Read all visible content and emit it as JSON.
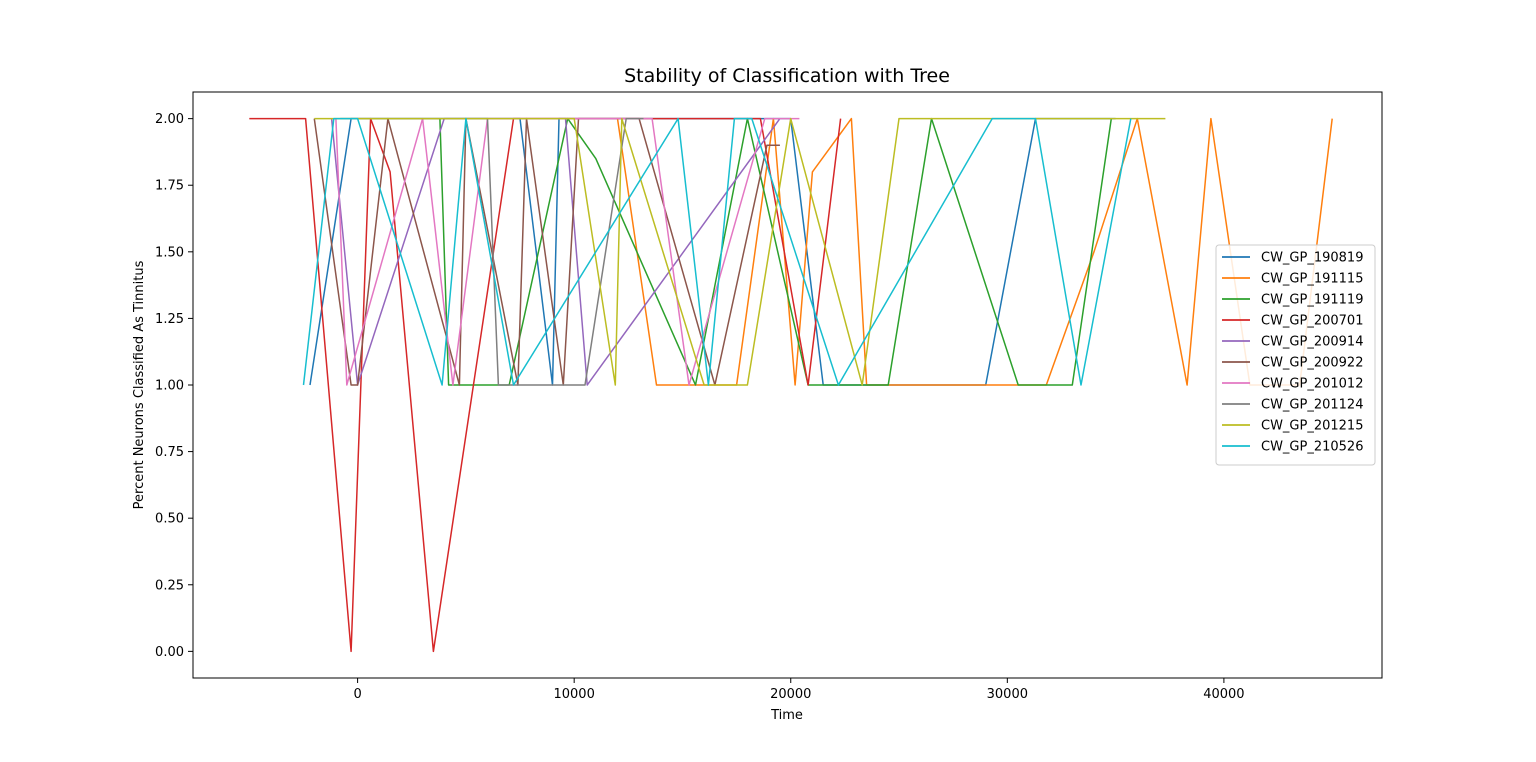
{
  "chart_data": {
    "type": "line",
    "title": "Stability of Classification with Tree",
    "xlabel": "Time",
    "ylabel": "Percent Neurons Classified As Tinnitus",
    "xlim": [
      -7600,
      47300
    ],
    "ylim": [
      -0.1,
      2.1
    ],
    "xticks": [
      0,
      10000,
      20000,
      30000,
      40000
    ],
    "xtick_labels": [
      "0",
      "10000",
      "20000",
      "30000",
      "40000"
    ],
    "yticks": [
      0.0,
      0.25,
      0.5,
      0.75,
      1.0,
      1.25,
      1.5,
      1.75,
      2.0
    ],
    "ytick_labels": [
      "0.00",
      "0.25",
      "0.50",
      "0.75",
      "1.00",
      "1.25",
      "1.50",
      "1.75",
      "2.00"
    ],
    "grid": false,
    "legend": "center-right",
    "colors": [
      "#1f77b4",
      "#ff7f0e",
      "#2ca02c",
      "#d62728",
      "#9467bd",
      "#8c564b",
      "#e377c2",
      "#7f7f7f",
      "#bcbd22",
      "#17becf"
    ],
    "series": [
      {
        "name": "CW_GP_190819",
        "x": [
          -2200,
          -300,
          1000,
          5000,
          7500,
          9000,
          9300,
          11000,
          15000,
          19000,
          20000,
          21500,
          29000,
          31300,
          35000
        ],
        "y": [
          1,
          2,
          2,
          2,
          2,
          1,
          2,
          2,
          2,
          2,
          2,
          1,
          1,
          2,
          2
        ]
      },
      {
        "name": "CW_GP_191115",
        "x": [
          12000,
          13800,
          17500,
          19200,
          20200,
          21000,
          22800,
          23500,
          31800,
          34000,
          36000,
          38300,
          39400,
          41200,
          43500,
          45000
        ],
        "y": [
          2,
          1,
          1,
          2,
          1,
          1.8,
          2,
          1,
          1,
          1.5,
          2,
          1,
          2,
          1,
          1,
          2
        ]
      },
      {
        "name": "CW_GP_191119",
        "x": [
          3800,
          4200,
          7000,
          9700,
          11000,
          15600,
          18000,
          20800,
          24500,
          26500,
          30500,
          33000,
          34800
        ],
        "y": [
          2,
          1,
          1,
          2,
          1.85,
          1,
          2,
          1,
          1,
          2,
          1,
          1,
          2
        ]
      },
      {
        "name": "CW_GP_200701",
        "x": [
          -5000,
          -2400,
          -300,
          600,
          1500,
          3500,
          7200,
          9800,
          18600,
          20800,
          22300
        ],
        "y": [
          2,
          2,
          0,
          2,
          1.8,
          0,
          2,
          2,
          2,
          1,
          2
        ]
      },
      {
        "name": "CW_GP_200914",
        "x": [
          -1200,
          0,
          4000,
          9600,
          10600,
          19500
        ],
        "y": [
          2,
          1,
          2,
          2,
          1,
          2
        ]
      },
      {
        "name": "CW_GP_200922",
        "x": [
          -2000,
          -300,
          0,
          1400,
          4700,
          5000,
          7400,
          7800,
          9500,
          10200,
          13000,
          16500,
          18900,
          19500
        ],
        "y": [
          2,
          1,
          1,
          2,
          1,
          2,
          1,
          2,
          1,
          2,
          2,
          1,
          1.9,
          1.9
        ]
      },
      {
        "name": "CW_GP_201012",
        "x": [
          -1000,
          -500,
          3000,
          4400,
          6000,
          7200,
          13600,
          15300,
          18800,
          20400
        ],
        "y": [
          2,
          1,
          2,
          1,
          2,
          2,
          2,
          1,
          2,
          2
        ]
      },
      {
        "name": "CW_GP_201124",
        "x": [
          -800,
          6000,
          6500,
          10500,
          12400,
          13200
        ],
        "y": [
          2,
          2,
          1,
          1,
          2,
          2
        ]
      },
      {
        "name": "CW_GP_201215",
        "x": [
          -2000,
          0,
          10000,
          11900,
          12200,
          16000,
          18000,
          20000,
          23300,
          25000,
          37300
        ],
        "y": [
          2,
          2,
          2,
          1,
          2,
          1,
          1,
          2,
          1,
          2,
          2
        ]
      },
      {
        "name": "CW_GP_210526",
        "x": [
          -2500,
          -1100,
          0,
          3900,
          5000,
          7200,
          14800,
          16200,
          17400,
          18200,
          22200,
          29300,
          31300,
          33400,
          35700
        ],
        "y": [
          1,
          2,
          2,
          1,
          2,
          1,
          2,
          1,
          2,
          2,
          1,
          2,
          2,
          1,
          2
        ]
      }
    ]
  }
}
